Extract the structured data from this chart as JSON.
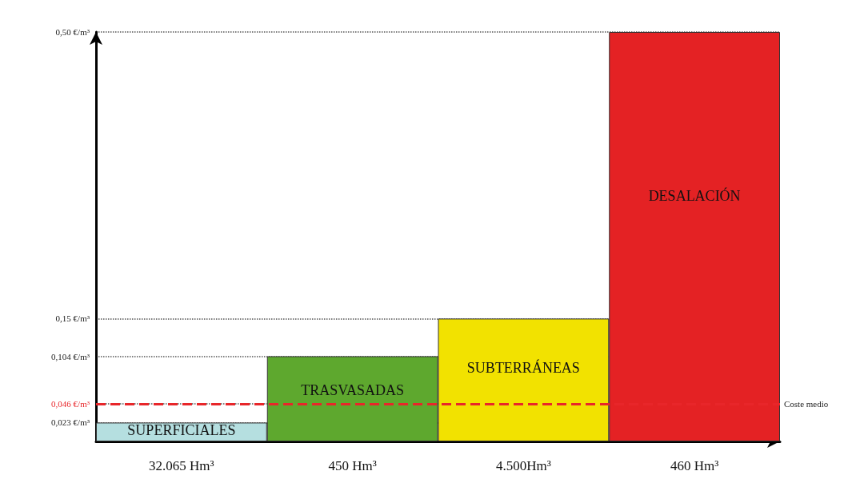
{
  "chart_data": {
    "type": "bar",
    "categories": [
      "32.065 Hm³",
      "450 Hm³",
      "4.500Hm³",
      "460 Hm³"
    ],
    "values": [
      0.023,
      0.104,
      0.15,
      0.5
    ],
    "colors": [
      "#b5dfe0",
      "#5ea82e",
      "#f2e200",
      "#e42224"
    ],
    "ylim": [
      0,
      0.5
    ],
    "yticks": [
      {
        "value": 0.023,
        "label": "0,023 €/m³"
      },
      {
        "value": 0.046,
        "label": "0,046 €/m³"
      },
      {
        "value": 0.104,
        "label": "0,104 €/m³"
      },
      {
        "value": 0.15,
        "label": "0,15 €/m³"
      },
      {
        "value": 0.5,
        "label": "0,50 €/m³"
      }
    ],
    "grid": "y",
    "ref_lines": [
      {
        "axis": "y",
        "value": 0.046,
        "label": "Coste medio",
        "color": "#e8262a",
        "line_style": "dashed"
      }
    ],
    "annotations": [
      "SUPERFICIALES",
      "TRASVASADAS",
      "SUBTERRÁNEAS",
      "DESALACIÓN"
    ]
  }
}
